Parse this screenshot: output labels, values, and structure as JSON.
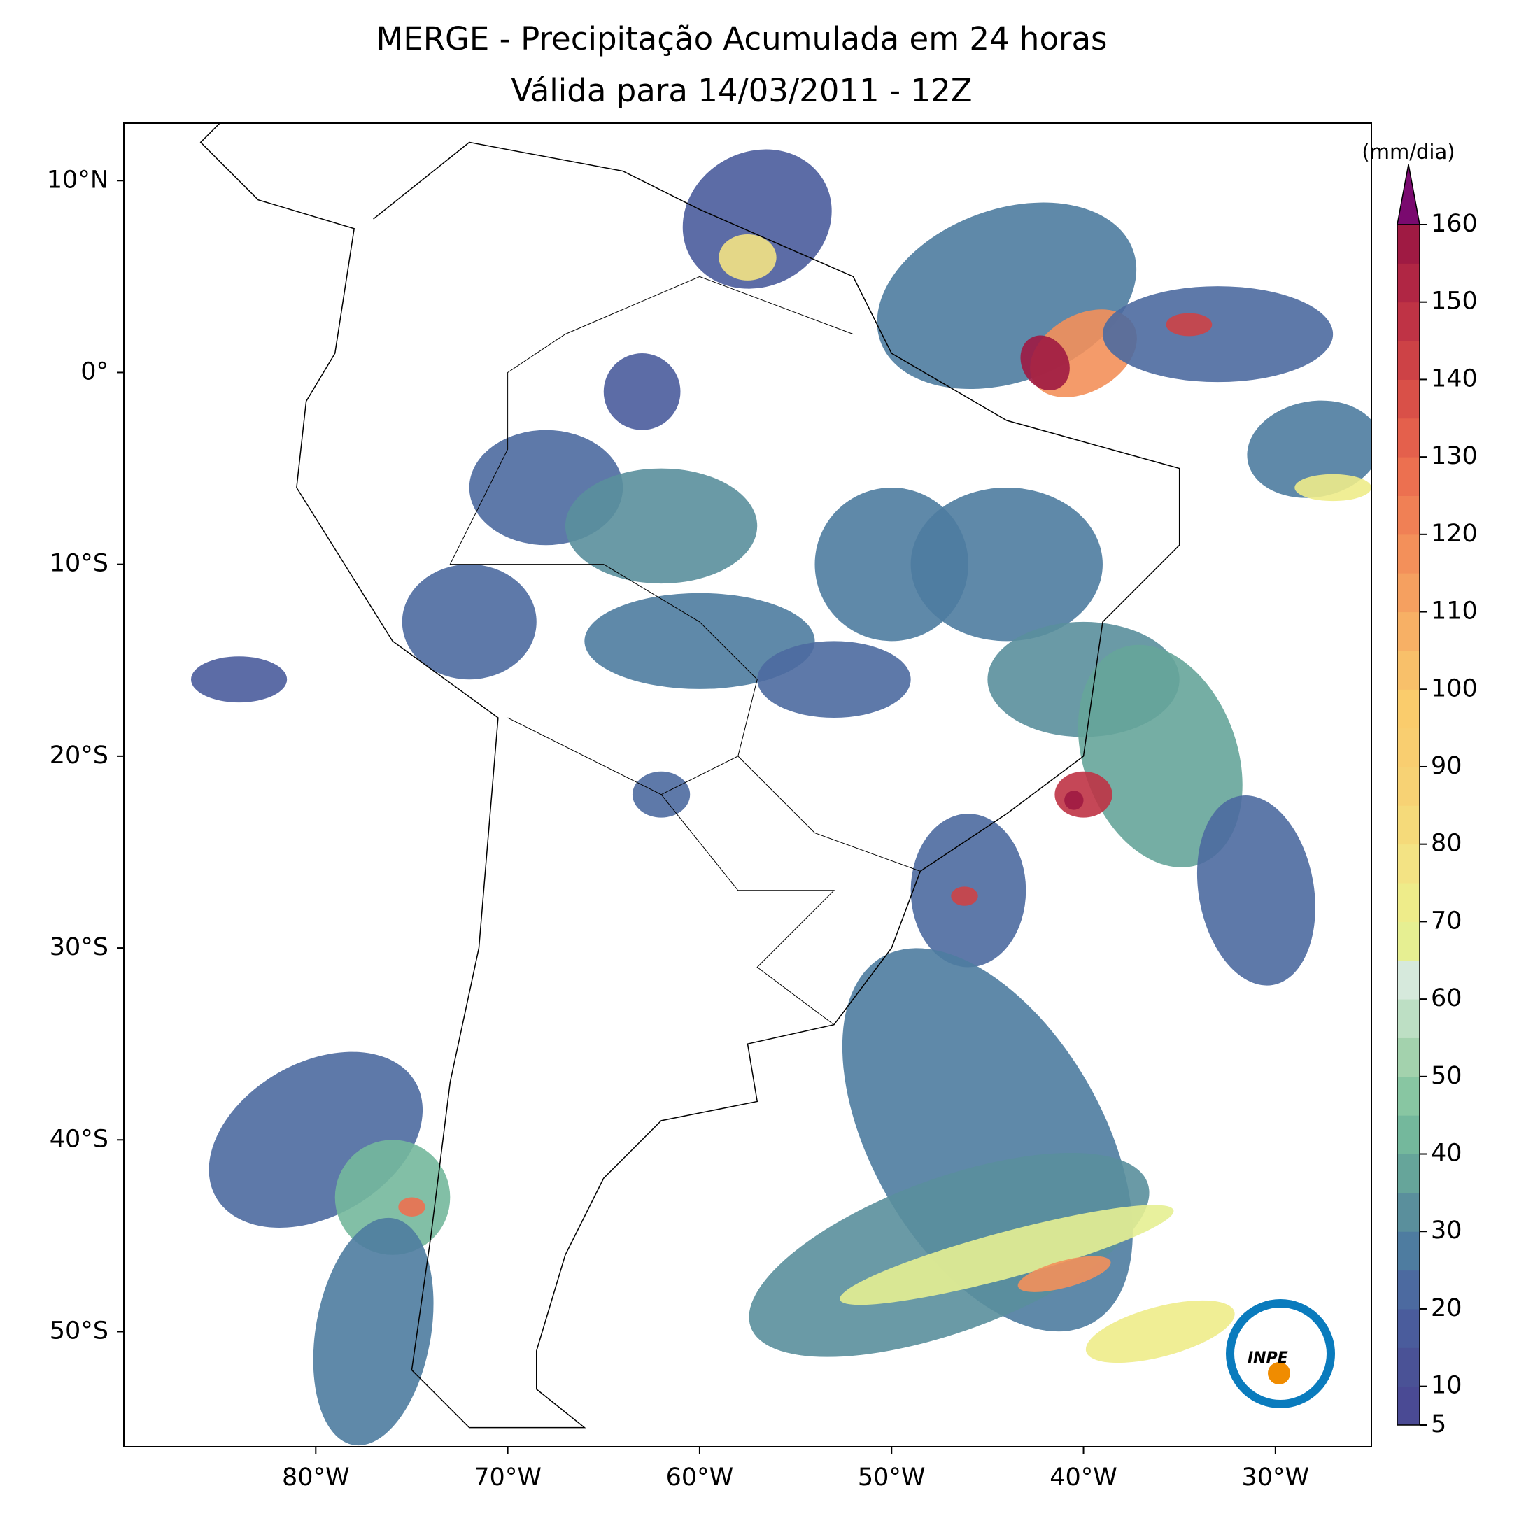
{
  "title": [
    "MERGE - Precipitação Acumulada em 24 horas",
    "Válida para 14/03/2011 - 12Z"
  ],
  "map": {
    "xlim": [
      -90,
      -25
    ],
    "ylim": [
      -56,
      13
    ],
    "xticks": [
      {
        "value": -80,
        "label": "80°W"
      },
      {
        "value": -70,
        "label": "70°W"
      },
      {
        "value": -60,
        "label": "60°W"
      },
      {
        "value": -50,
        "label": "50°W"
      },
      {
        "value": -40,
        "label": "40°W"
      },
      {
        "value": -30,
        "label": "30°W"
      }
    ],
    "yticks": [
      {
        "value": 10,
        "label": "10°N"
      },
      {
        "value": 0,
        "label": "0°"
      },
      {
        "value": -10,
        "label": "10°S"
      },
      {
        "value": -20,
        "label": "20°S"
      },
      {
        "value": -30,
        "label": "30°S"
      },
      {
        "value": -40,
        "label": "40°S"
      },
      {
        "value": -50,
        "label": "50°S"
      }
    ]
  },
  "colorbar": {
    "label": "(mm/dia)",
    "lim": [
      5,
      160
    ],
    "ticks": [
      5,
      10,
      20,
      30,
      40,
      50,
      60,
      70,
      80,
      90,
      100,
      110,
      120,
      130,
      140,
      150,
      160
    ],
    "colors": [
      "#4a4a94",
      "#4a5296",
      "#4a5c9c",
      "#4c6aa0",
      "#4e7ca0",
      "#5a8f9c",
      "#66a59a",
      "#74b89c",
      "#88c6a2",
      "#a3d2ad",
      "#bddfc4",
      "#d6e9dc",
      "#e6ef92",
      "#eeec8a",
      "#f3e384",
      "#f5da7a",
      "#f7d274",
      "#f9ce70",
      "#facc6c",
      "#f8c06a",
      "#f7b065",
      "#f5a060",
      "#f3905a",
      "#f08055",
      "#ec7050",
      "#e4604c",
      "#d95048",
      "#cd4246",
      "#bf3345",
      "#b02644",
      "#9f1a43"
    ],
    "extend_color": "#7a0a6f"
  },
  "logo": "INPE"
}
